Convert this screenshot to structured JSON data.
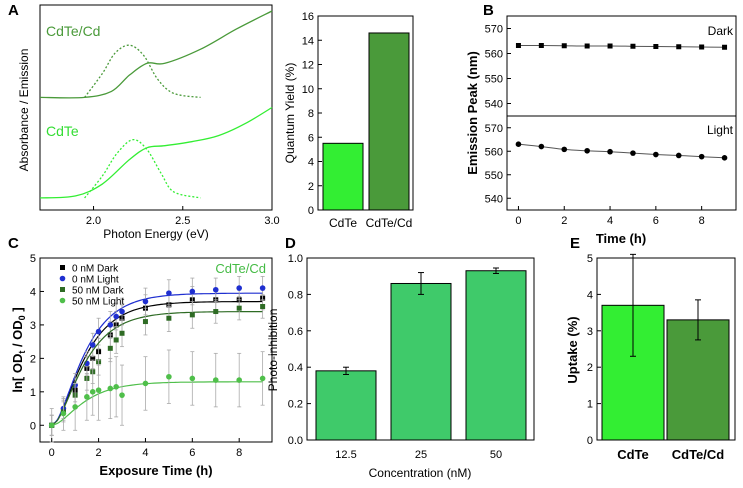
{
  "panels": {
    "A": "A",
    "B": "B",
    "C": "C",
    "D": "D",
    "E": "E"
  },
  "colors": {
    "green_light": "#33ee33",
    "green_dark": "#4a9a3a",
    "green_mid": "#3fca6a",
    "blue": "#1f2fd0",
    "black": "#000000",
    "gray": "#555555"
  },
  "chart_data": [
    {
      "id": "A-spectra",
      "type": "line",
      "xlabel": "Photon Energy (eV)",
      "ylabel": "Absorbance / Emission",
      "xlim": [
        1.7,
        3.0
      ],
      "xticks": [
        2.0,
        2.5,
        3.0
      ],
      "xtick_labels": [
        "2.0",
        "2.5",
        "3.0"
      ],
      "series": [
        {
          "name": "CdTe/Cd absorbance",
          "label": "CdTe/Cd",
          "style": "solid",
          "x": [
            1.7,
            1.95,
            2.1,
            2.2,
            2.3,
            2.4,
            2.6,
            2.8,
            3.0
          ],
          "y": [
            0.55,
            0.55,
            0.58,
            0.66,
            0.72,
            0.72,
            0.79,
            0.89,
            0.98
          ]
        },
        {
          "name": "CdTe/Cd emission",
          "style": "dotted",
          "x": [
            1.95,
            2.05,
            2.12,
            2.2,
            2.28,
            2.36,
            2.45,
            2.6
          ],
          "y": [
            0.55,
            0.67,
            0.77,
            0.81,
            0.76,
            0.64,
            0.57,
            0.55
          ]
        },
        {
          "name": "CdTe absorbance",
          "label": "CdTe",
          "style": "solid",
          "x": [
            1.7,
            1.9,
            2.05,
            2.2,
            2.3,
            2.4,
            2.55,
            2.7,
            2.85,
            3.0
          ],
          "y": [
            0.05,
            0.06,
            0.12,
            0.24,
            0.3,
            0.31,
            0.33,
            0.36,
            0.42,
            0.5
          ]
        },
        {
          "name": "CdTe emission",
          "style": "dotted",
          "x": [
            1.95,
            2.05,
            2.13,
            2.22,
            2.3,
            2.38,
            2.45,
            2.6
          ],
          "y": [
            0.05,
            0.16,
            0.27,
            0.34,
            0.29,
            0.17,
            0.08,
            0.05
          ]
        }
      ]
    },
    {
      "id": "A-quantum-yield",
      "type": "bar",
      "ylabel": "Quantum Yield (%)",
      "ylim": [
        0,
        16
      ],
      "yticks": [
        0,
        2,
        4,
        6,
        8,
        10,
        12,
        14,
        16
      ],
      "categories": [
        "CdTe",
        "CdTe/Cd"
      ],
      "values": [
        5.5,
        14.6
      ]
    },
    {
      "id": "B-emission-peak",
      "type": "line",
      "xlabel": "Time (h)",
      "ylabel": "Emission Peak (nm)",
      "xlim": [
        -0.5,
        9.5
      ],
      "xticks": [
        0,
        2,
        4,
        6,
        8
      ],
      "ylim": [
        535,
        575
      ],
      "yticks": [
        540,
        550,
        560,
        570
      ],
      "series": [
        {
          "name": "Dark",
          "x": [
            0,
            1,
            2,
            3,
            4,
            5,
            6,
            7,
            8,
            9
          ],
          "y": [
            563.2,
            563.2,
            563.1,
            563.0,
            563.0,
            562.9,
            562.8,
            562.7,
            562.6,
            562.5
          ]
        },
        {
          "name": "Light",
          "x": [
            0,
            1,
            2,
            3,
            4,
            5,
            6,
            7,
            8,
            9
          ],
          "y": [
            563.0,
            562.0,
            560.8,
            560.2,
            559.8,
            559.2,
            558.6,
            558.2,
            557.7,
            557.2
          ]
        }
      ]
    },
    {
      "id": "C-kinetics",
      "type": "scatter",
      "xlabel": "Exposure Time (h)",
      "ylabel_parts": [
        "ln[ OD",
        "t",
        " / OD",
        "0",
        " ]"
      ],
      "annotation": "CdTe/Cd",
      "xlim": [
        -0.5,
        9.4
      ],
      "xticks": [
        0,
        2,
        4,
        6,
        8
      ],
      "ylim": [
        -0.5,
        5
      ],
      "yticks": [
        0,
        1,
        2,
        3,
        4,
        5
      ],
      "legend": [
        "0 nM Dark",
        "0 nM Light",
        "50 nM Dark",
        "50 nM Light"
      ],
      "x": [
        0,
        0.5,
        1,
        1.5,
        1.75,
        2,
        2.5,
        2.75,
        3,
        4,
        5,
        6,
        7,
        8,
        9
      ],
      "series": [
        {
          "name": "0 nM Dark",
          "marker": "square",
          "color": "#000000",
          "plateau": 3.7,
          "k": 0.95,
          "values": [
            0,
            0.45,
            1.05,
            1.7,
            2.0,
            2.2,
            2.7,
            3.0,
            3.2,
            3.5,
            3.6,
            3.75,
            3.75,
            3.75,
            3.8
          ],
          "errors": [
            0.3,
            0.3,
            0.35,
            0.35,
            0.35,
            0.4,
            0.4,
            0.4,
            0.4,
            0.4,
            0.4,
            0.4,
            0.35,
            0.35,
            0.35
          ]
        },
        {
          "name": "0 nM Light",
          "marker": "circle",
          "color": "#1f2fd0",
          "plateau": 3.95,
          "k": 0.95,
          "values": [
            0,
            0.5,
            1.2,
            1.85,
            2.4,
            2.8,
            3.0,
            3.25,
            3.4,
            3.7,
            3.95,
            4.0,
            4.05,
            4.1,
            4.1
          ],
          "errors": [
            0.3,
            0.3,
            0.35,
            0.35,
            0.35,
            0.4,
            0.4,
            0.4,
            0.4,
            0.4,
            0.4,
            0.4,
            0.35,
            0.35,
            0.35
          ]
        },
        {
          "name": "50 nM Dark",
          "marker": "square",
          "color": "#2e6b24",
          "plateau": 3.4,
          "k": 0.95,
          "values": [
            0,
            0.4,
            0.9,
            1.4,
            1.6,
            1.9,
            2.3,
            2.55,
            2.75,
            3.1,
            3.2,
            3.3,
            3.4,
            3.5,
            3.55
          ],
          "errors": [
            0.3,
            0.3,
            0.35,
            0.35,
            0.35,
            0.4,
            0.4,
            0.4,
            0.4,
            0.4,
            0.4,
            0.4,
            0.35,
            0.35,
            0.35
          ]
        },
        {
          "name": "50 nM Light",
          "marker": "circle",
          "color": "#4fbf4a",
          "plateau": 1.3,
          "k": 0.95,
          "values": [
            0,
            0.35,
            0.55,
            0.85,
            1.0,
            1.05,
            1.1,
            1.15,
            0.9,
            1.25,
            1.45,
            1.4,
            1.35,
            1.35,
            1.4
          ],
          "errors": [
            0.5,
            0.5,
            0.7,
            0.7,
            0.7,
            0.9,
            0.9,
            0.9,
            0.9,
            0.8,
            0.8,
            0.8,
            0.8,
            0.8,
            0.8
          ]
        }
      ]
    },
    {
      "id": "D-photo-inhibition",
      "type": "bar",
      "xlabel": "Concentration (nM)",
      "ylabel": "Photo-inhibition",
      "ylim": [
        0,
        1.0
      ],
      "yticks": [
        0.0,
        0.2,
        0.4,
        0.6,
        0.8,
        1.0
      ],
      "ytick_labels": [
        "0.0",
        "0.2",
        "0.4",
        "0.6",
        "0.8",
        "1.0"
      ],
      "categories": [
        "12.5",
        "25",
        "50"
      ],
      "values": [
        0.38,
        0.86,
        0.93
      ],
      "errors": [
        0.02,
        0.06,
        0.015
      ]
    },
    {
      "id": "E-uptake",
      "type": "bar",
      "ylabel": "Uptake (%)",
      "ylim": [
        0,
        5
      ],
      "yticks": [
        0,
        1,
        2,
        3,
        4,
        5
      ],
      "categories": [
        "CdTe",
        "CdTe/Cd"
      ],
      "values": [
        3.7,
        3.3
      ],
      "errors": [
        1.4,
        0.55
      ]
    }
  ]
}
